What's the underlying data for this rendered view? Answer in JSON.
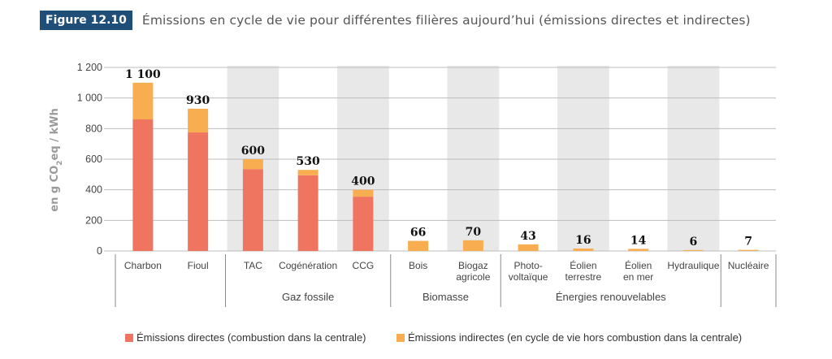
{
  "figure": {
    "badge": "Figure 12.10",
    "title": "Émissions en cycle de vie pour différentes filières aujourd’hui (émissions directes et indirectes)"
  },
  "colors": {
    "direct": "#ef7560",
    "indirect": "#f8ae50",
    "band": "#e8e8e8",
    "grid": "#bdbdbd"
  },
  "chart_data": {
    "type": "bar",
    "stacked": true,
    "title": "Émissions en cycle de vie pour différentes filières aujourd’hui (émissions directes et indirectes)",
    "ylabel": "en g CO2eq / kWh",
    "ylim": [
      0,
      1200
    ],
    "yticks": [
      0,
      200,
      400,
      600,
      800,
      1000,
      1200
    ],
    "ytick_labels": [
      "0",
      "200",
      "400",
      "600",
      "800",
      "1 000",
      "1 200"
    ],
    "categories": [
      "Charbon",
      "Fioul",
      "TAC",
      "Cogénération",
      "CCG",
      "Bois",
      "Biogaz agricole",
      "Photo-voltaïque",
      "Éolien terrestre",
      "Éolien en mer",
      "Hydraulique",
      "Nucléaire"
    ],
    "category_lines": [
      [
        "Charbon"
      ],
      [
        "Fioul"
      ],
      [
        "TAC"
      ],
      [
        "Cogénération"
      ],
      [
        "CCG"
      ],
      [
        "Bois"
      ],
      [
        "Biogaz",
        "agricole"
      ],
      [
        "Photo-",
        "voltaïque"
      ],
      [
        "Éolien",
        "terrestre"
      ],
      [
        "Éolien",
        "en mer"
      ],
      [
        "Hydraulique"
      ],
      [
        "Nucléaire"
      ]
    ],
    "series": [
      {
        "name": "Émissions directes (combustion dans la centrale)",
        "values": [
          860,
          775,
          535,
          495,
          355,
          0,
          0,
          0,
          0,
          0,
          0,
          0
        ]
      },
      {
        "name": "Émissions indirectes (en cycle de vie hors combustion dans la centrale)",
        "values": [
          240,
          155,
          65,
          35,
          45,
          66,
          70,
          43,
          16,
          14,
          6,
          7
        ]
      }
    ],
    "totals": [
      1100,
      930,
      600,
      530,
      400,
      66,
      70,
      43,
      16,
      14,
      6,
      7
    ],
    "total_labels": [
      "1 100",
      "930",
      "600",
      "530",
      "400",
      "66",
      "70",
      "43",
      "16",
      "14",
      "6",
      "7"
    ],
    "groups": [
      {
        "label": "",
        "categories": [
          "Charbon",
          "Fioul"
        ]
      },
      {
        "label": "Gaz fossile",
        "categories": [
          "TAC",
          "Cogénération",
          "CCG"
        ]
      },
      {
        "label": "Biomasse",
        "categories": [
          "Bois",
          "Biogaz agricole"
        ]
      },
      {
        "label": "Énergies renouvelables",
        "categories": [
          "Photo-voltaïque",
          "Éolien terrestre",
          "Éolien en mer",
          "Hydraulique"
        ]
      },
      {
        "label": "",
        "categories": [
          "Nucléaire"
        ]
      }
    ],
    "grid": true,
    "legend_position": "bottom"
  }
}
